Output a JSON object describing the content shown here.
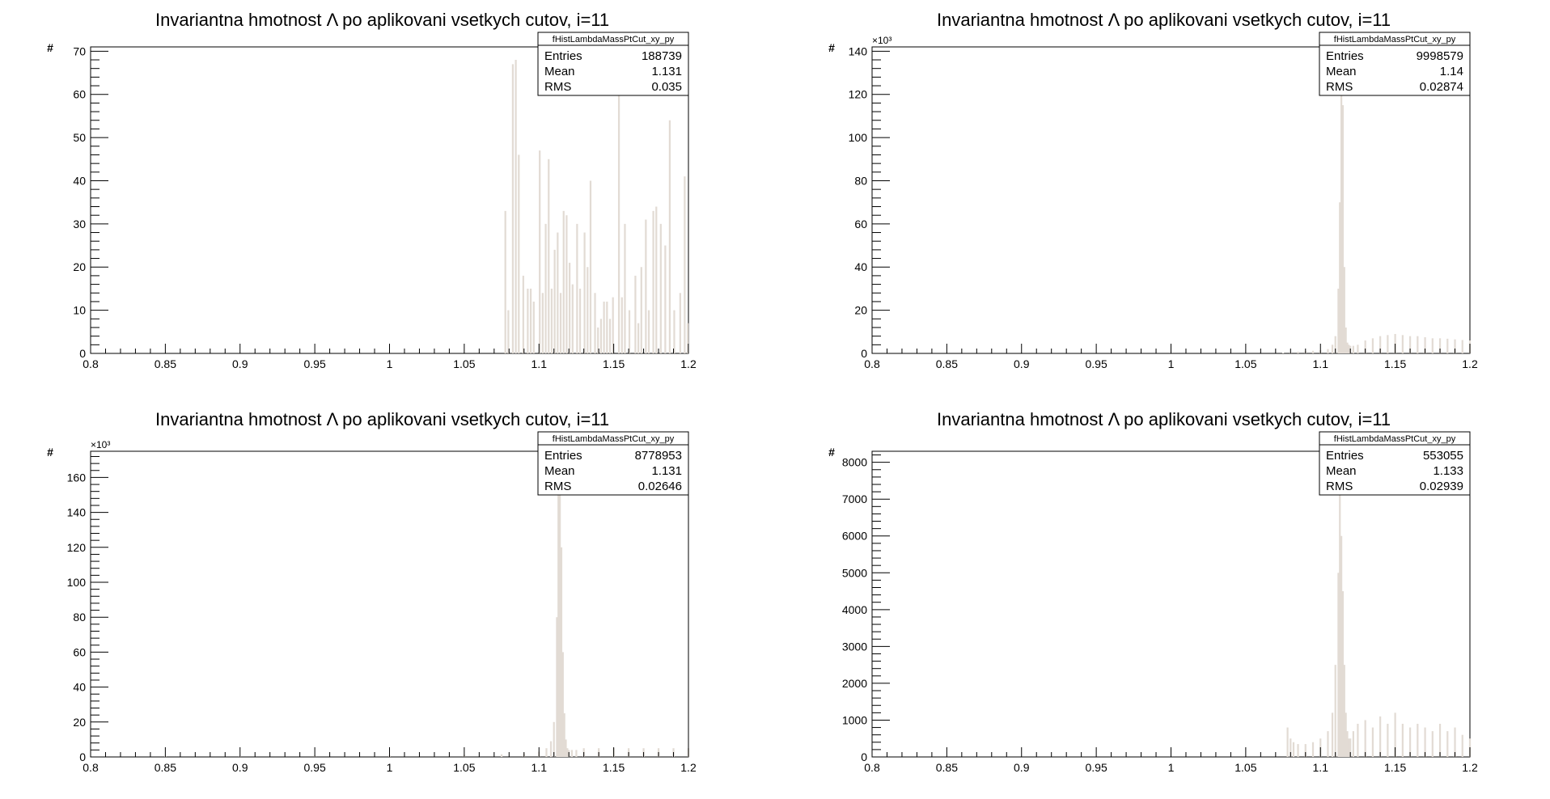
{
  "colors": {
    "fill": "#e2dbd4",
    "line": "#a89c92",
    "axis": "#000000"
  },
  "chart_data": [
    {
      "type": "bar",
      "title": "Invariantna hmotnost Λ po aplikovani vsetkych cutov, i=11",
      "ylabel": "#",
      "y_exponent_label": "",
      "xlim": [
        0.8,
        1.2
      ],
      "ylim": [
        0,
        71
      ],
      "xticks": [
        "0.8",
        "0.85",
        "0.9",
        "0.95",
        "1",
        "1.05",
        "1.1",
        "1.15",
        "1.2"
      ],
      "yticks": [
        "0",
        "10",
        "20",
        "30",
        "40",
        "50",
        "60",
        "70"
      ],
      "ytick_values": [
        0,
        10,
        20,
        30,
        40,
        50,
        60,
        70
      ],
      "stats": {
        "name": "fHistLambdaMassPtCut_xy_py",
        "entries": "188739",
        "mean": "1.131",
        "rms": "0.035"
      },
      "x": [
        1.0775,
        1.0795,
        1.0825,
        1.0845,
        1.0865,
        1.0895,
        1.0925,
        1.0945,
        1.0965,
        1.1005,
        1.1025,
        1.1045,
        1.1065,
        1.1085,
        1.1105,
        1.1125,
        1.1145,
        1.1165,
        1.1185,
        1.1205,
        1.1225,
        1.1255,
        1.1275,
        1.1305,
        1.1325,
        1.1345,
        1.1375,
        1.1395,
        1.1415,
        1.1435,
        1.1455,
        1.1475,
        1.1495,
        1.1535,
        1.1555,
        1.1575,
        1.1605,
        1.1645,
        1.1665,
        1.1685,
        1.1715,
        1.1735,
        1.1765,
        1.1785,
        1.1815,
        1.1845,
        1.1875,
        1.1905,
        1.1945,
        1.1975,
        1.1995
      ],
      "values": [
        33,
        10,
        67,
        68,
        46,
        18,
        15,
        15,
        12,
        47,
        14,
        30,
        45,
        15,
        24,
        28,
        14,
        33,
        32,
        21,
        16,
        30,
        15,
        28,
        20,
        40,
        14,
        6,
        8,
        12,
        12,
        8,
        13,
        60,
        13,
        30,
        10,
        18,
        7,
        20,
        31,
        10,
        33,
        34,
        30,
        25,
        54,
        10,
        14,
        41,
        7
      ]
    },
    {
      "type": "bar",
      "title": "Invariantna hmotnost Λ po aplikovani vsetkych cutov, i=11",
      "ylabel": "#",
      "y_exponent_label": "×10³",
      "xlim": [
        0.8,
        1.2
      ],
      "ylim": [
        0,
        142
      ],
      "xticks": [
        "0.8",
        "0.85",
        "0.9",
        "0.95",
        "1",
        "1.05",
        "1.1",
        "1.15",
        "1.2"
      ],
      "yticks": [
        "0",
        "20",
        "40",
        "60",
        "80",
        "100",
        "120",
        "140"
      ],
      "ytick_values": [
        0,
        20,
        40,
        60,
        80,
        100,
        120,
        140
      ],
      "stats": {
        "name": "fHistLambdaMassPtCut_xy_py",
        "entries": "9998579",
        "mean": "1.14",
        "rms": "0.02874"
      },
      "x": [
        1.075,
        1.08,
        1.085,
        1.09,
        1.095,
        1.1,
        1.105,
        1.108,
        1.11,
        1.112,
        1.113,
        1.114,
        1.115,
        1.116,
        1.117,
        1.118,
        1.119,
        1.12,
        1.122,
        1.125,
        1.13,
        1.135,
        1.14,
        1.145,
        1.15,
        1.155,
        1.16,
        1.165,
        1.17,
        1.175,
        1.18,
        1.185,
        1.19,
        1.195,
        1.2
      ],
      "values": [
        0.2,
        0.5,
        0.8,
        1.0,
        1.2,
        1.5,
        2.0,
        4,
        8,
        30,
        70,
        136,
        115,
        40,
        12,
        5,
        4,
        3.5,
        3.5,
        4,
        6,
        7,
        8,
        8.5,
        9,
        8.5,
        8,
        8,
        7.5,
        7,
        7,
        6.8,
        6.5,
        6.2,
        6
      ]
    },
    {
      "type": "bar",
      "title": "Invariantna hmotnost Λ po aplikovani vsetkych cutov, i=11",
      "ylabel": "#",
      "y_exponent_label": "×10³",
      "xlim": [
        0.8,
        1.2
      ],
      "ylim": [
        0,
        175
      ],
      "xticks": [
        "0.8",
        "0.85",
        "0.9",
        "0.95",
        "1",
        "1.05",
        "1.1",
        "1.15",
        "1.2"
      ],
      "yticks": [
        "0",
        "20",
        "40",
        "60",
        "80",
        "100",
        "120",
        "140",
        "160"
      ],
      "ytick_values": [
        0,
        20,
        40,
        60,
        80,
        100,
        120,
        140,
        160
      ],
      "stats": {
        "name": "fHistLambdaMassPtCut_xy_py",
        "entries": "8778953",
        "mean": "1.131",
        "rms": "0.02646"
      },
      "x": [
        0.8,
        0.85,
        0.9,
        0.95,
        1.0,
        1.05,
        1.075,
        1.09,
        1.1,
        1.105,
        1.108,
        1.11,
        1.112,
        1.113,
        1.114,
        1.115,
        1.116,
        1.117,
        1.118,
        1.119,
        1.12,
        1.122,
        1.125,
        1.13,
        1.14,
        1.15,
        1.16,
        1.17,
        1.18,
        1.19,
        1.2
      ],
      "values": [
        0.3,
        0.5,
        0.6,
        0.8,
        1.0,
        1.2,
        1.5,
        2,
        3,
        5,
        9,
        20,
        80,
        165,
        150,
        120,
        60,
        25,
        10,
        5,
        4,
        4,
        4,
        5,
        5,
        5,
        5,
        5,
        5,
        5,
        5
      ]
    },
    {
      "type": "bar",
      "title": "Invariantna hmotnost Λ po aplikovani vsetkych cutov, i=11",
      "ylabel": "#",
      "y_exponent_label": "",
      "xlim": [
        0.8,
        1.2
      ],
      "ylim": [
        0,
        8300
      ],
      "xticks": [
        "0.8",
        "0.85",
        "0.9",
        "0.95",
        "1",
        "1.05",
        "1.1",
        "1.15",
        "1.2"
      ],
      "yticks": [
        "0",
        "1000",
        "2000",
        "3000",
        "4000",
        "5000",
        "6000",
        "7000",
        "8000"
      ],
      "ytick_values": [
        0,
        1000,
        2000,
        3000,
        4000,
        5000,
        6000,
        7000,
        8000
      ],
      "stats": {
        "name": "fHistLambdaMassPtCut_xy_py",
        "entries": "553055",
        "mean": "1.133",
        "rms": "0.02939"
      },
      "x": [
        1.078,
        1.08,
        1.082,
        1.085,
        1.09,
        1.095,
        1.1,
        1.105,
        1.108,
        1.11,
        1.112,
        1.113,
        1.114,
        1.115,
        1.116,
        1.117,
        1.118,
        1.119,
        1.12,
        1.122,
        1.125,
        1.13,
        1.135,
        1.14,
        1.145,
        1.15,
        1.155,
        1.16,
        1.165,
        1.17,
        1.175,
        1.18,
        1.185,
        1.19,
        1.195,
        1.2
      ],
      "values": [
        800,
        500,
        400,
        350,
        350,
        400,
        500,
        700,
        1200,
        2500,
        5000,
        7900,
        6000,
        4500,
        2500,
        1200,
        700,
        500,
        500,
        700,
        900,
        1000,
        800,
        1100,
        900,
        1200,
        900,
        800,
        900,
        800,
        700,
        900,
        700,
        800,
        600,
        500
      ]
    }
  ]
}
